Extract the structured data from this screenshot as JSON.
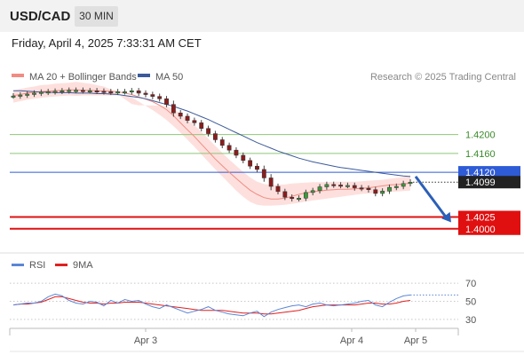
{
  "header": {
    "symbol": "USD/CAD",
    "timeframe": "30 MIN"
  },
  "timestamp": "Friday, April 4, 2025 7:33:31 AM CET",
  "legend": [
    {
      "label": "MA 20 + Bollinger Bands",
      "color": "#f28b82"
    },
    {
      "label": "MA 50",
      "color": "#3c5a9a"
    }
  ],
  "credit": "Research © 2025 Trading Central",
  "rsi_legend": [
    {
      "label": "RSI",
      "color": "#5b86d6"
    },
    {
      "label": "9MA",
      "color": "#e02020"
    }
  ],
  "chart_data": [
    {
      "type": "line",
      "subtype": "candlestick with moving averages",
      "ylim": [
        1.396,
        1.4335
      ],
      "x_ticks": [
        "Apr 3",
        "Apr 4",
        "Apr 5"
      ],
      "current_price": "1.4099",
      "levels": [
        {
          "label": "1.4200",
          "value": 1.42,
          "kind": "resistance",
          "color": "#8fc77a"
        },
        {
          "label": "1.4160",
          "value": 1.416,
          "kind": "resistance",
          "color": "#8fc77a"
        },
        {
          "label": "1.4120",
          "value": 1.412,
          "kind": "pivot",
          "color": "#2e5bd6"
        },
        {
          "label": "1.4025",
          "value": 1.4025,
          "kind": "support",
          "color": "#e01010"
        },
        {
          "label": "1.4000",
          "value": 1.4,
          "kind": "support",
          "color": "#e01010"
        }
      ],
      "close": [
        1.4282,
        1.4284,
        1.4286,
        1.4288,
        1.429,
        1.4291,
        1.4292,
        1.4293,
        1.4294,
        1.4294,
        1.4293,
        1.4293,
        1.4292,
        1.4291,
        1.429,
        1.4291,
        1.4291,
        1.4293,
        1.4288,
        1.4285,
        1.4281,
        1.4276,
        1.4264,
        1.4246,
        1.4239,
        1.423,
        1.4225,
        1.4213,
        1.4202,
        1.4189,
        1.4177,
        1.4167,
        1.4156,
        1.4145,
        1.4133,
        1.4126,
        1.4108,
        1.409,
        1.4079,
        1.4067,
        1.4064,
        1.4065,
        1.4077,
        1.4081,
        1.4089,
        1.4094,
        1.4093,
        1.4092,
        1.4092,
        1.4087,
        1.4086,
        1.4083,
        1.4075,
        1.408,
        1.4088,
        1.409,
        1.4096,
        1.4099
      ],
      "ma20": [
        1.4283,
        1.4285,
        1.4288,
        1.429,
        1.4291,
        1.4292,
        1.4293,
        1.4294,
        1.4295,
        1.4295,
        1.4294,
        1.4294,
        1.4293,
        1.4292,
        1.4292,
        1.4291,
        1.4288,
        1.4285,
        1.428,
        1.4275,
        1.427,
        1.4262,
        1.4253,
        1.424,
        1.4225,
        1.421,
        1.4196,
        1.418,
        1.4164,
        1.4148,
        1.4134,
        1.412,
        1.4107,
        1.4094,
        1.4082,
        1.4073,
        1.4066,
        1.4063,
        1.4063,
        1.4065,
        1.4069,
        1.4073,
        1.4076,
        1.4079,
        1.408,
        1.4082,
        1.4083,
        1.4084,
        1.4084,
        1.4085,
        1.4086,
        1.4087,
        1.4089,
        1.4091,
        1.4093,
        1.4094,
        1.4095,
        1.4097
      ],
      "bb_upper": [
        1.4294,
        1.4297,
        1.43,
        1.4302,
        1.4305,
        1.4306,
        1.4308,
        1.4309,
        1.431,
        1.4312,
        1.431,
        1.4308,
        1.4305,
        1.4302,
        1.4296,
        1.4286,
        1.4275,
        1.4265,
        1.4262,
        1.4262,
        1.4262,
        1.4261,
        1.426,
        1.4254,
        1.4244,
        1.4231,
        1.422,
        1.4206,
        1.4191,
        1.4176,
        1.4161,
        1.4147,
        1.4134,
        1.4121,
        1.4109,
        1.41,
        1.4095,
        1.4093,
        1.4093,
        1.4094,
        1.4096,
        1.4097,
        1.4098,
        1.4099,
        1.4099,
        1.4099,
        1.41,
        1.41,
        1.41,
        1.41,
        1.4101,
        1.4102,
        1.4103,
        1.4104,
        1.4106,
        1.4108,
        1.411,
        1.4113
      ],
      "bb_lower": [
        1.4268,
        1.4271,
        1.4274,
        1.4276,
        1.4278,
        1.428,
        1.4281,
        1.4282,
        1.4283,
        1.4282,
        1.4283,
        1.4283,
        1.4283,
        1.4283,
        1.4283,
        1.4283,
        1.4283,
        1.4279,
        1.427,
        1.4261,
        1.4252,
        1.4242,
        1.4231,
        1.4218,
        1.4204,
        1.4189,
        1.4174,
        1.4158,
        1.4142,
        1.4126,
        1.4111,
        1.4096,
        1.4081,
        1.4068,
        1.4057,
        1.4051,
        1.4049,
        1.4049,
        1.405,
        1.4051,
        1.4053,
        1.4055,
        1.4058,
        1.406,
        1.4062,
        1.4064,
        1.4066,
        1.4068,
        1.407,
        1.4072,
        1.4074,
        1.4075,
        1.4076,
        1.4077,
        1.4078,
        1.4079,
        1.408,
        1.4081
      ],
      "ma50": [
        1.4293,
        1.4293,
        1.4292,
        1.4291,
        1.429,
        1.429,
        1.4289,
        1.4289,
        1.4289,
        1.4288,
        1.4288,
        1.4288,
        1.4287,
        1.4287,
        1.4286,
        1.4285,
        1.4283,
        1.4281,
        1.4279,
        1.4276,
        1.4272,
        1.4268,
        1.4264,
        1.426,
        1.4255,
        1.425,
        1.4244,
        1.4238,
        1.4232,
        1.4225,
        1.4218,
        1.4211,
        1.4204,
        1.4197,
        1.419,
        1.4183,
        1.4177,
        1.4171,
        1.4165,
        1.416,
        1.4155,
        1.415,
        1.4146,
        1.4142,
        1.4139,
        1.4136,
        1.4133,
        1.413,
        1.4128,
        1.4126,
        1.4124,
        1.4122,
        1.412,
        1.4118,
        1.4116,
        1.4114,
        1.4112,
        1.4111
      ],
      "forecast": {
        "from": 1.4111,
        "to": 1.4025
      }
    },
    {
      "type": "line",
      "subtype": "RSI",
      "ylim": [
        23,
        77
      ],
      "y_ticks": [
        "70",
        "50",
        "30"
      ],
      "rsi": [
        46,
        47,
        48,
        48,
        50,
        55,
        58,
        56,
        51,
        48,
        47,
        50,
        49,
        45,
        51,
        48,
        52,
        50,
        51,
        47,
        44,
        42,
        46,
        43,
        40,
        37,
        39,
        41,
        44,
        40,
        38,
        36,
        35,
        34,
        37,
        39,
        33,
        38,
        41,
        43,
        45,
        46,
        44,
        47,
        48,
        46,
        45,
        46,
        47,
        48,
        50,
        51,
        46,
        44,
        49,
        53,
        56,
        57
      ],
      "ma9": [
        46,
        47,
        47,
        48,
        49,
        52,
        55,
        55,
        53,
        51,
        49,
        48,
        48,
        47,
        48,
        48,
        49,
        49,
        49,
        48,
        47,
        46,
        45,
        44,
        43,
        42,
        41,
        40,
        40,
        40,
        40,
        39,
        38,
        37,
        37,
        37,
        36,
        36,
        37,
        38,
        39,
        40,
        42,
        44,
        45,
        46,
        46,
        46,
        46,
        46,
        47,
        48,
        48,
        47,
        47,
        48,
        50,
        51
      ]
    }
  ]
}
